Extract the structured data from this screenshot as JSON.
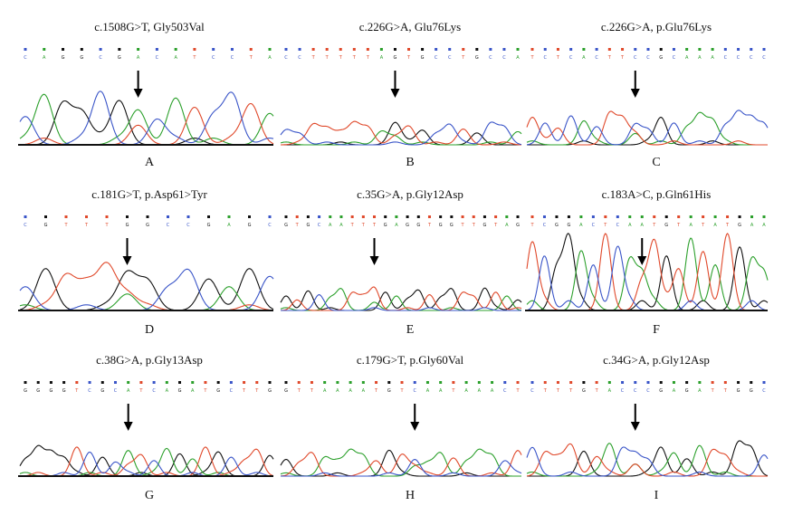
{
  "panels": [
    {
      "id": "A",
      "title": "c.1508G>T, Gly503Val",
      "label": "A"
    },
    {
      "id": "B",
      "title": "c.226G>A, Glu76Lys",
      "label": "B"
    },
    {
      "id": "C",
      "title": "c.226G>A, p.Glu76Lys",
      "label": "C"
    },
    {
      "id": "D",
      "title": "c.181G>T, p.Asp61>Tyr",
      "label": "D"
    },
    {
      "id": "E",
      "title": "c.35G>A, p.Gly12Asp",
      "label": "E"
    },
    {
      "id": "F",
      "title": "c.183A>C, p.Gln61His",
      "label": "F"
    },
    {
      "id": "G",
      "title": "c.38G>A, p.Gly13Asp",
      "label": "G"
    },
    {
      "id": "H",
      "title": "c.179G>T, p.Gly60Val",
      "label": "H"
    },
    {
      "id": "I",
      "title": "c.34G>A, p.Gly12Asp",
      "label": "I"
    }
  ],
  "colors": {
    "A": "#2ca02c",
    "C": "#3a55c8",
    "G": "#111111",
    "T": "#e0492b"
  }
}
